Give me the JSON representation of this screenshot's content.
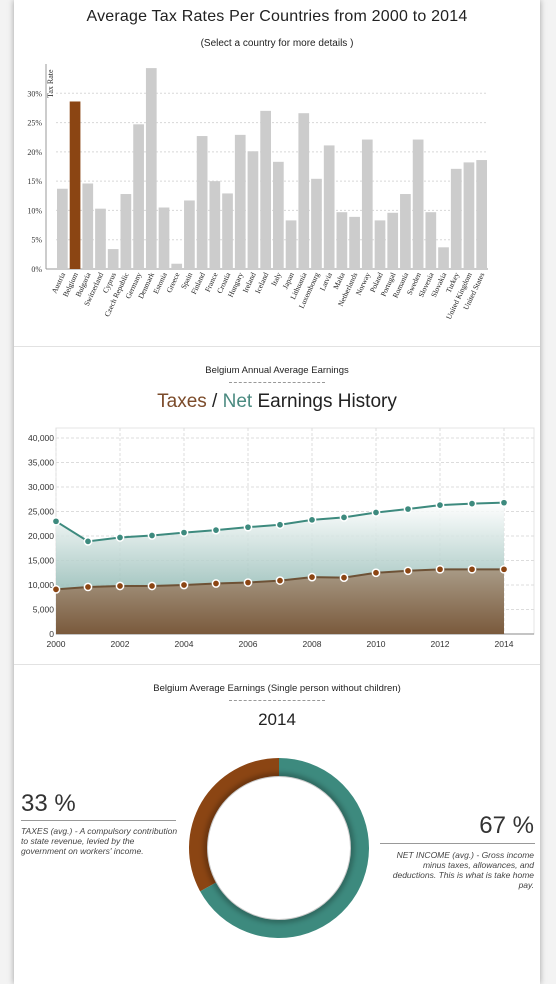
{
  "header": {
    "title": "Average Tax Rates Per Countries from 2000 to 2014",
    "subtitle": "(Select a country for more details )"
  },
  "section2": {
    "label": "Belgium Annual Average Earnings",
    "heading_taxes": "Taxes",
    "heading_sep": " / ",
    "heading_net": "Net",
    "heading_rest": " Earnings History"
  },
  "section3": {
    "label": "Belgium Average Earnings (Single person without children)",
    "year": "2014",
    "taxes_pct": "33 %",
    "taxes_note": "TAXES (avg.) - A compulsory contribution to state revenue, levied by the government on workers' income.",
    "net_pct": "67 %",
    "net_note": "NET INCOME (avg.) - Gross income minus taxes, allowances, and deductions. This is what is take home pay."
  },
  "colors": {
    "bar": "#cccccc",
    "bar_selected": "#8b4513",
    "taxes": "#7b4b2a",
    "net": "#3d8a7e"
  },
  "chart_data": [
    {
      "type": "bar",
      "title": "Average Tax Rates Per Countries from 2000 to 2014",
      "ylabel": "Tax Rate",
      "ylim": [
        0,
        35
      ],
      "yticks": [
        "0%",
        "5%",
        "10%",
        "15%",
        "20%",
        "25%",
        "30%"
      ],
      "selected": "Belgium",
      "categories": [
        "Austria",
        "Belgium",
        "Bulgaria",
        "Switzerland",
        "Cyprus",
        "Czech Republic",
        "Germany",
        "Denmark",
        "Estonia",
        "Greece",
        "Spain",
        "Finland",
        "France",
        "Croatia",
        "Hungary",
        "Ireland",
        "Iceland",
        "Italy",
        "Japan",
        "Lithuania",
        "Luxembourg",
        "Latvia",
        "Malta",
        "Netherlands",
        "Norway",
        "Poland",
        "Portugal",
        "Romania",
        "Sweden",
        "Slovenia",
        "Slovakia",
        "Turkey",
        "United Kingdom",
        "United States"
      ],
      "values": [
        13.7,
        28.6,
        14.6,
        10.3,
        3.4,
        12.8,
        24.7,
        34.3,
        10.5,
        0.9,
        11.7,
        22.7,
        15.0,
        12.9,
        22.9,
        20.1,
        27.0,
        18.3,
        8.3,
        26.6,
        15.4,
        21.1,
        9.7,
        8.9,
        22.1,
        8.3,
        9.6,
        12.8,
        22.1,
        9.7,
        3.7,
        17.1,
        18.2,
        18.6
      ]
    },
    {
      "type": "area",
      "title": "Taxes / Net Earnings History",
      "x": [
        2000,
        2001,
        2002,
        2003,
        2004,
        2005,
        2006,
        2007,
        2008,
        2009,
        2010,
        2011,
        2012,
        2013,
        2014
      ],
      "xticks": [
        "2000",
        "2002",
        "2004",
        "2006",
        "2008",
        "2010",
        "2012",
        "2014"
      ],
      "ylim": [
        0,
        40000
      ],
      "yticks": [
        "0",
        "5,000",
        "10,000",
        "15,000",
        "20,000",
        "25,000",
        "30,000",
        "35,000",
        "40,000"
      ],
      "grid": true,
      "series": [
        {
          "name": "Net",
          "values": [
            23000,
            18900,
            19700,
            20100,
            20700,
            21200,
            21800,
            22300,
            23300,
            23800,
            24800,
            25500,
            26300,
            26600,
            26800
          ]
        },
        {
          "name": "Taxes",
          "values": [
            9100,
            9600,
            9800,
            9800,
            10000,
            10300,
            10500,
            10900,
            11600,
            11500,
            12500,
            12900,
            13200,
            13200,
            13200
          ]
        }
      ]
    },
    {
      "type": "pie",
      "title": "2014",
      "slices": [
        {
          "name": "TAXES (avg.)",
          "value": 33
        },
        {
          "name": "NET INCOME (avg.)",
          "value": 67
        }
      ]
    }
  ]
}
